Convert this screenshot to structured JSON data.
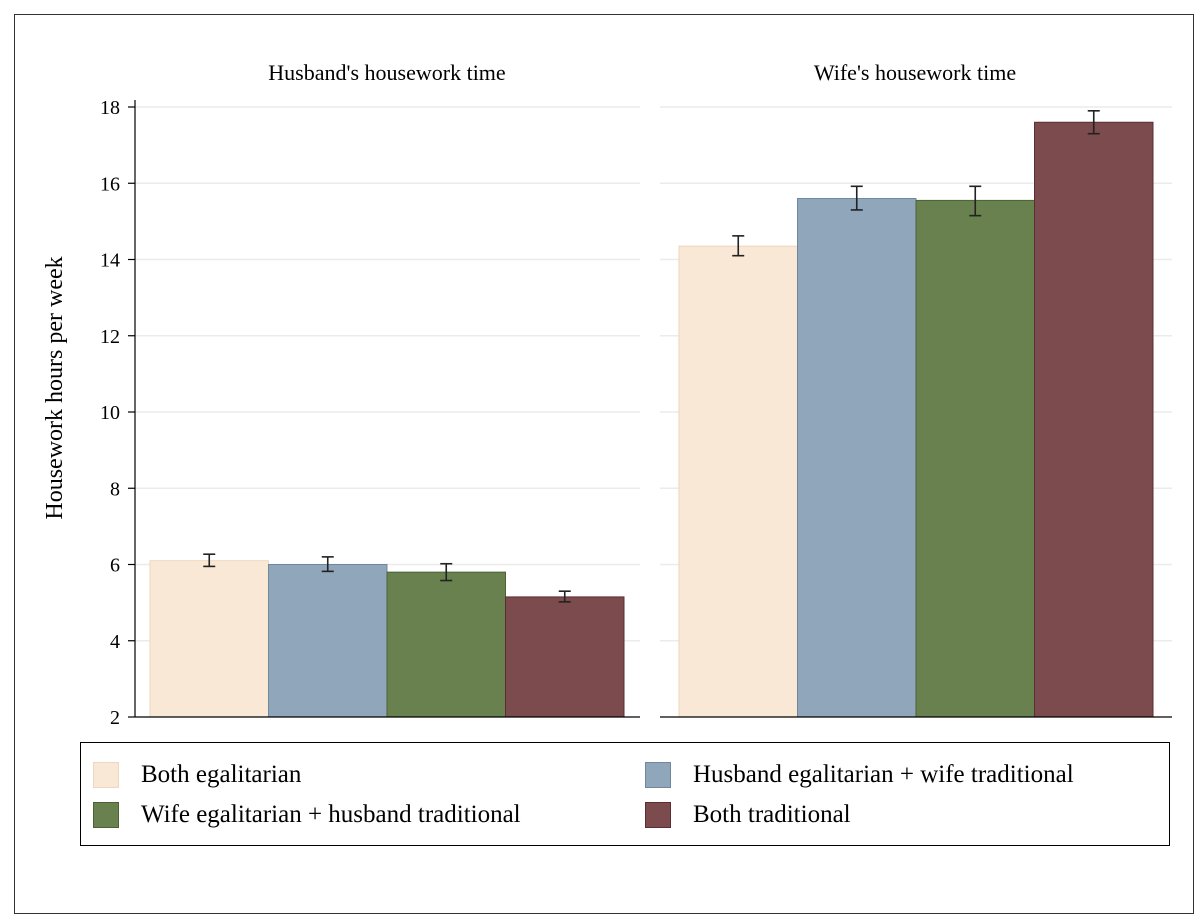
{
  "chart_data": {
    "type": "bar",
    "ylabel": "Housework hours per week",
    "ylim": [
      2,
      18
    ],
    "yticks": [
      2,
      4,
      6,
      8,
      10,
      12,
      14,
      16,
      18
    ],
    "grid": true,
    "legend_position": "bottom",
    "series": [
      {
        "name": "Both egalitarian",
        "color": "#fae8d6",
        "edge": "#eed6bf"
      },
      {
        "name": "Husband egalitarian + wife traditional",
        "color": "#8fa6bb",
        "edge": "#6f889e"
      },
      {
        "name": "Wife egalitarian + husband traditional",
        "color": "#69814f",
        "edge": "#4c6236"
      },
      {
        "name": "Both traditional",
        "color": "#7b4b4e",
        "edge": "#5a2e33"
      }
    ],
    "panels": [
      {
        "title": "Husband's housework time",
        "values": [
          6.1,
          6.0,
          5.8,
          5.15
        ],
        "ci_low": [
          5.95,
          5.82,
          5.58,
          5.02
        ],
        "ci_high": [
          6.27,
          6.2,
          6.02,
          5.3
        ]
      },
      {
        "title": "Wife's housework time",
        "values": [
          14.35,
          15.6,
          15.55,
          17.6
        ],
        "ci_low": [
          14.1,
          15.3,
          15.15,
          17.3
        ],
        "ci_high": [
          14.62,
          15.92,
          15.92,
          17.9
        ]
      }
    ]
  }
}
